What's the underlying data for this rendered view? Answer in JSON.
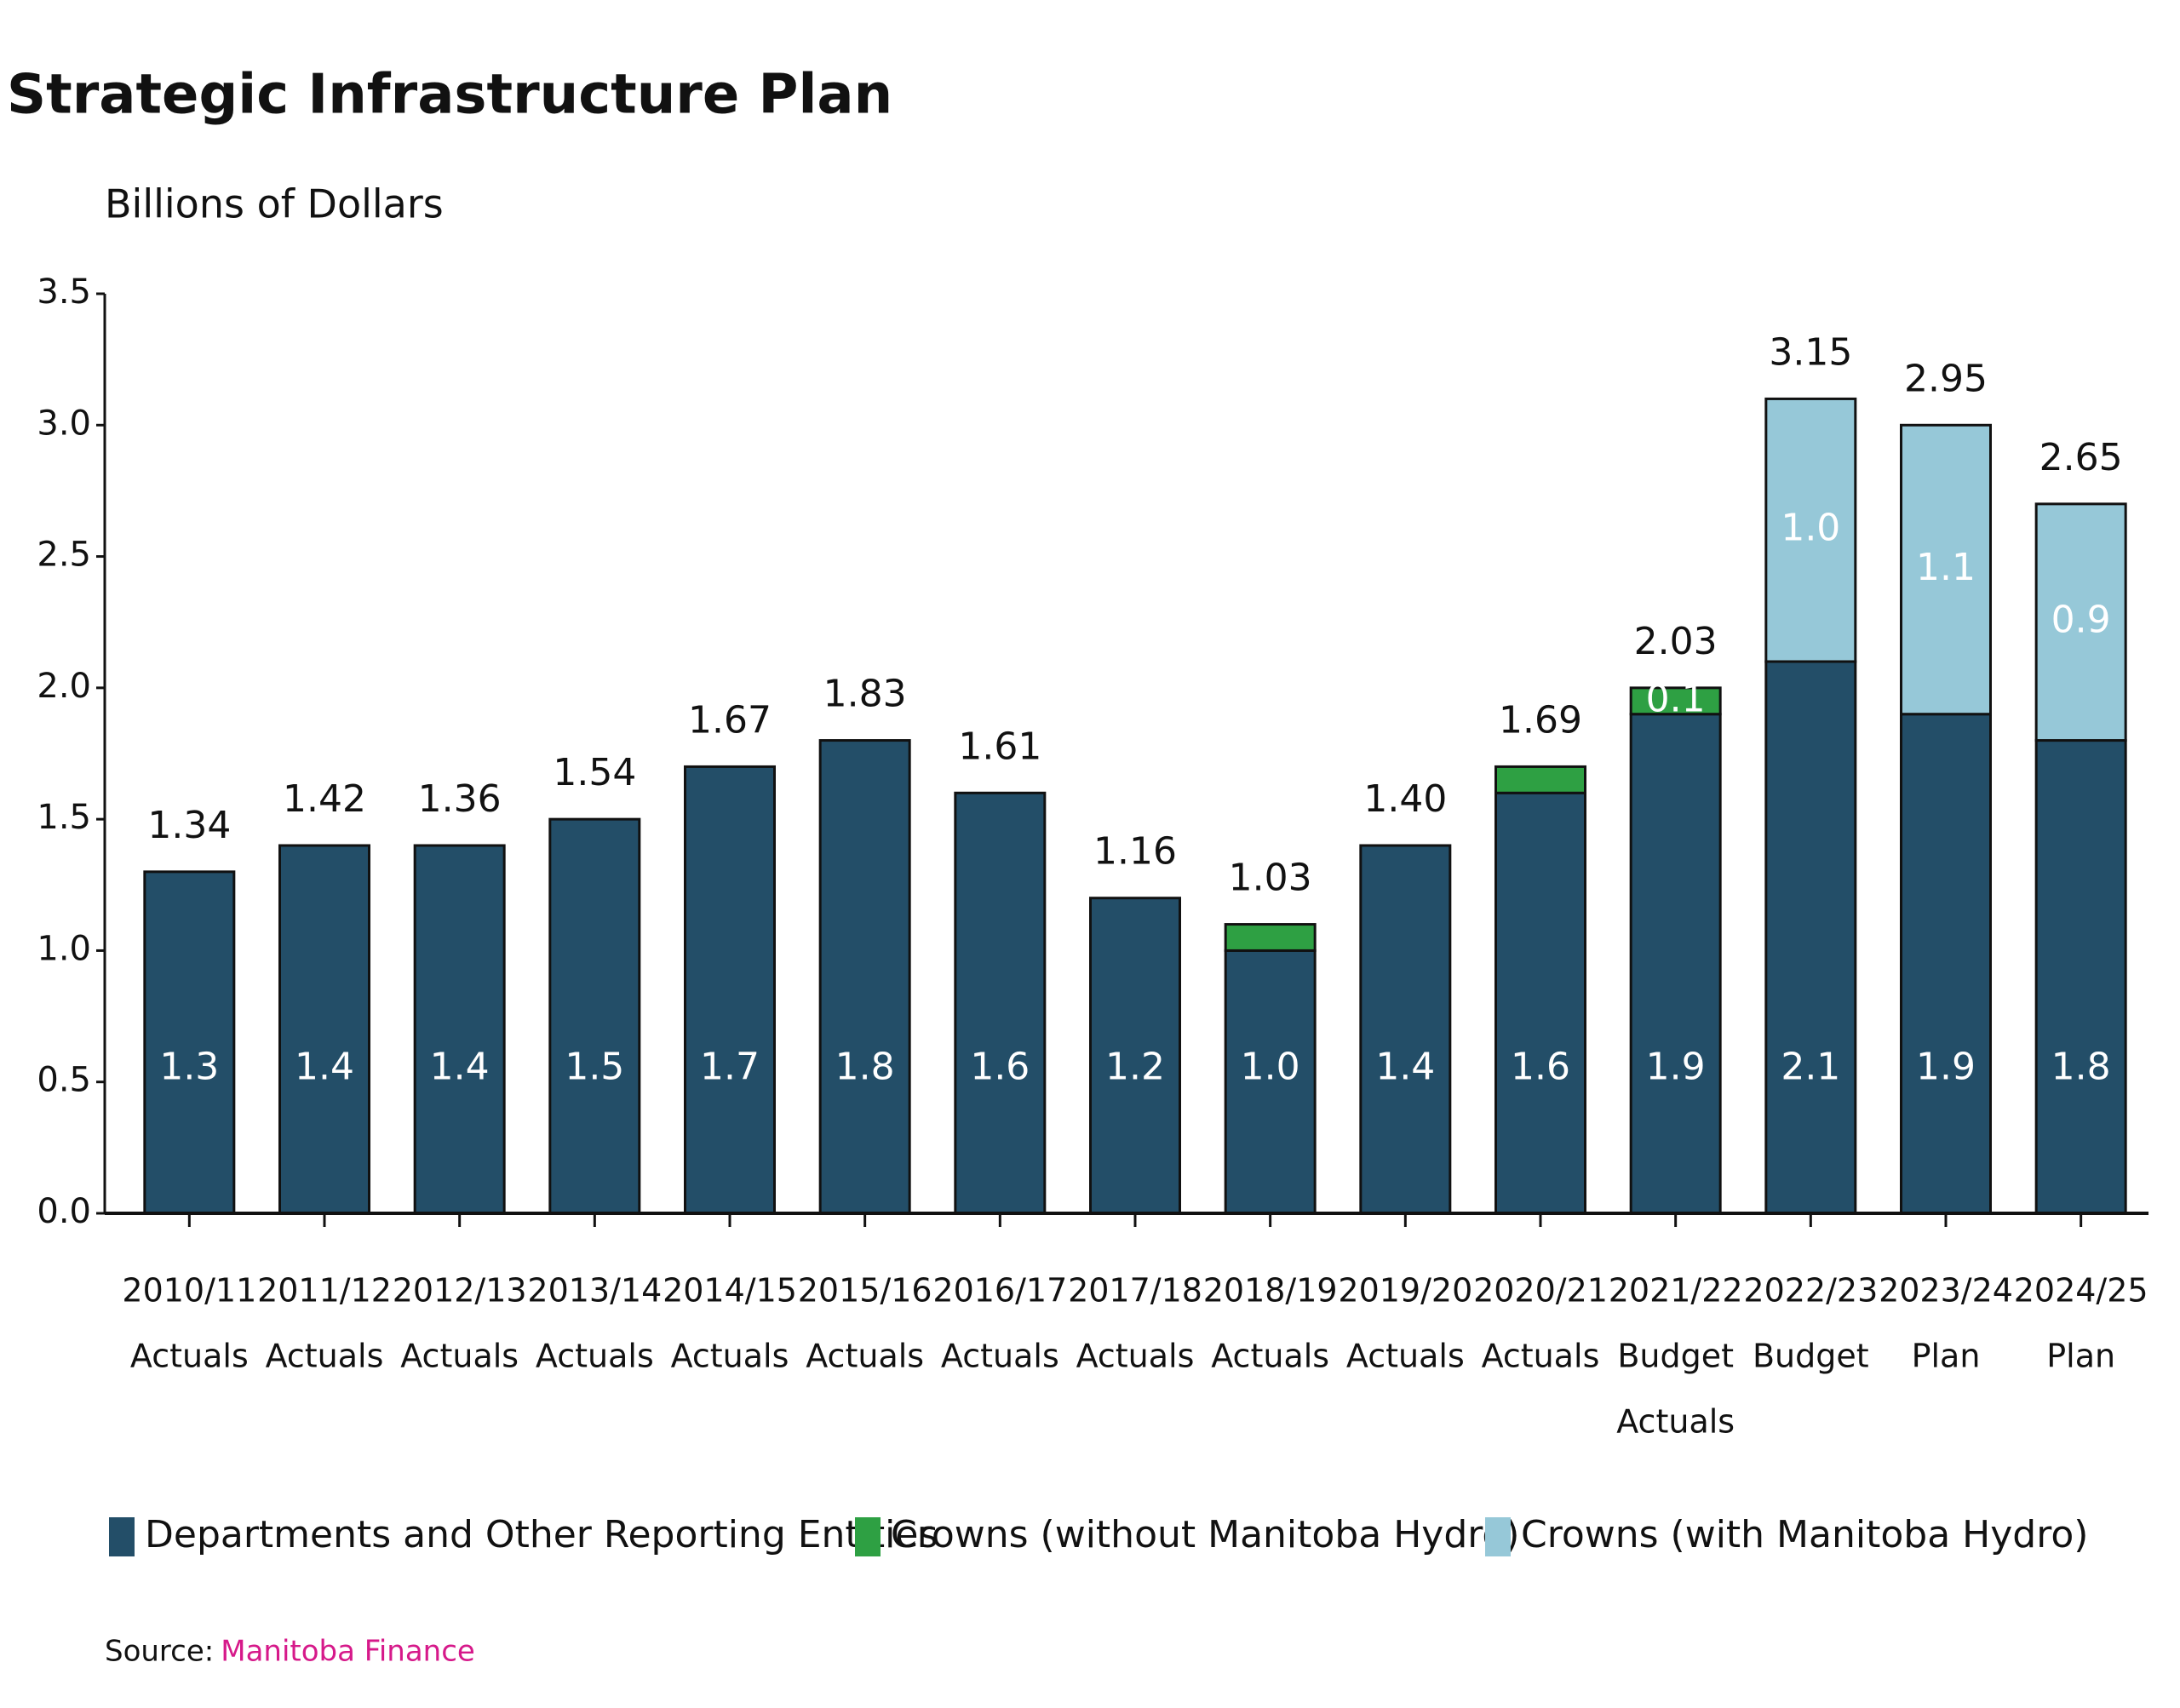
{
  "chart_data": {
    "type": "stacked_bar",
    "title": "Strategic Infrastructure Plan",
    "subtitle": "Billions of Dollars",
    "categories": [
      [
        "2010/11",
        "Actuals"
      ],
      [
        "2011/12",
        "Actuals"
      ],
      [
        "2012/13",
        "Actuals"
      ],
      [
        "2013/14",
        "Actuals"
      ],
      [
        "2014/15",
        "Actuals"
      ],
      [
        "2015/16",
        "Actuals"
      ],
      [
        "2016/17",
        "Actuals"
      ],
      [
        "2017/18",
        "Actuals"
      ],
      [
        "2018/19",
        "Actuals"
      ],
      [
        "2019/20",
        "Actuals"
      ],
      [
        "2020/21",
        "Actuals"
      ],
      [
        "2021/22",
        "Budget",
        "Actuals"
      ],
      [
        "2022/23",
        "Budget"
      ],
      [
        "2023/24",
        "Plan"
      ],
      [
        "2024/25",
        "Plan"
      ]
    ],
    "series": [
      {
        "name": "Departments and Other Reporting Entities",
        "color": "#234e68",
        "values": [
          1.3,
          1.4,
          1.4,
          1.5,
          1.7,
          1.8,
          1.6,
          1.2,
          1.0,
          1.4,
          1.6,
          1.9,
          2.1,
          1.9,
          1.8
        ],
        "value_labels": [
          "1.3",
          "1.4",
          "1.4",
          "1.5",
          "1.7",
          "1.8",
          "1.6",
          "1.2",
          "1.0",
          "1.4",
          "1.6",
          "1.9",
          "2.1",
          "1.9",
          "1.8"
        ]
      },
      {
        "name": "Crowns (without Manitoba Hydro)",
        "color": "#2ea043",
        "values": [
          null,
          null,
          null,
          null,
          null,
          null,
          null,
          null,
          0.1,
          null,
          0.1,
          0.1,
          null,
          null,
          null
        ],
        "value_labels": [
          null,
          null,
          null,
          null,
          null,
          null,
          null,
          null,
          null,
          null,
          null,
          "0.1",
          null,
          null,
          null
        ]
      },
      {
        "name": "Crowns (with Manitoba Hydro)",
        "color": "#96c8d8",
        "values": [
          null,
          null,
          null,
          null,
          null,
          null,
          null,
          null,
          null,
          null,
          null,
          null,
          1.0,
          1.1,
          0.9
        ],
        "value_labels": [
          null,
          null,
          null,
          null,
          null,
          null,
          null,
          null,
          null,
          null,
          null,
          null,
          "1.0",
          "1.1",
          "0.9"
        ]
      }
    ],
    "totals": {
      "values": [
        1.34,
        1.42,
        1.36,
        1.54,
        1.67,
        1.83,
        1.61,
        1.16,
        1.03,
        1.4,
        1.69,
        2.03,
        3.15,
        2.95,
        2.65
      ],
      "value_labels": [
        "1.34",
        "1.42",
        "1.36",
        "1.54",
        "1.67",
        "1.83",
        "1.61",
        "1.16",
        "1.03",
        "1.40",
        "1.69",
        "2.03",
        "3.15",
        "2.95",
        "2.65"
      ]
    },
    "ylim": [
      0,
      3.5
    ],
    "yticks": [
      {
        "value": 0,
        "label": "0.0"
      },
      0.5,
      {
        "value": 1,
        "label": "1.0"
      },
      1.5,
      {
        "value": 2,
        "label": "2.0"
      },
      2.5,
      {
        "value": 3,
        "label": "3.0"
      },
      3.5
    ],
    "grid": false,
    "legend": "bottom",
    "source": {
      "label": "Source:",
      "text": "Manitoba Finance",
      "color": "#d6198a"
    }
  }
}
